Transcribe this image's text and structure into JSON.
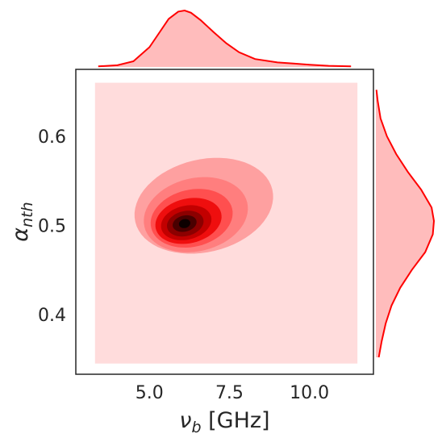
{
  "chart_data": {
    "type": "kde-jointplot",
    "xlabel_symbol": "ν",
    "xlabel_sub": "b",
    "xlabel_unit": " [GHz]",
    "ylabel_symbol": "α",
    "ylabel_sub": "nth",
    "xlim": [
      2.7,
      12.0
    ],
    "ylim": [
      0.333,
      0.675
    ],
    "x_ticks": [
      5.0,
      7.5,
      10.0
    ],
    "x_tick_labels": [
      "5.0",
      "7.5",
      "10.0"
    ],
    "y_ticks": [
      0.4,
      0.5,
      0.6
    ],
    "y_tick_labels": [
      "0.4",
      "0.5",
      "0.6"
    ],
    "fill_range_x": [
      3.3,
      11.5
    ],
    "fill_range_y": [
      0.345,
      0.66
    ],
    "joint_peak": {
      "x": 6.1,
      "y": 0.502
    },
    "contour_levels": [
      {
        "level": 1,
        "color": "#fea0a0",
        "a": 2.2,
        "b": 0.052,
        "angle": 0.2335,
        "cx": 6.7,
        "cy": 0.522
      },
      {
        "level": 2,
        "color": "#ff7e7e",
        "a": 1.65,
        "b": 0.041,
        "angle": 0.2335,
        "cx": 6.45,
        "cy": 0.512
      },
      {
        "level": 3,
        "color": "#ff4f4f",
        "a": 1.3,
        "b": 0.032,
        "angle": 0.2335,
        "cx": 6.32,
        "cy": 0.508
      },
      {
        "level": 4,
        "color": "#ef0e0e",
        "a": 1.05,
        "b": 0.025,
        "angle": 0.2335,
        "cx": 6.22,
        "cy": 0.505
      },
      {
        "level": 5,
        "color": "#c20000",
        "a": 0.8,
        "b": 0.019,
        "angle": 0.2335,
        "cx": 6.15,
        "cy": 0.503
      },
      {
        "level": 6,
        "color": "#8c0000",
        "a": 0.58,
        "b": 0.014,
        "angle": 0.2335,
        "cx": 6.12,
        "cy": 0.502
      },
      {
        "level": 7,
        "color": "#4a0000",
        "a": 0.38,
        "b": 0.009,
        "angle": 0.2335,
        "cx": 6.1,
        "cy": 0.502
      },
      {
        "level": 8,
        "color": "#0d0000",
        "a": 0.18,
        "b": 0.005,
        "angle": 0.2335,
        "cx": 6.1,
        "cy": 0.502
      }
    ],
    "x_marginal": {
      "x": [
        3.4,
        4.0,
        4.5,
        5.0,
        5.3,
        5.6,
        5.9,
        6.1,
        6.3,
        6.6,
        7.0,
        7.4,
        7.8,
        8.3,
        9.0,
        9.5,
        10.0,
        10.6,
        11.3
      ],
      "density": [
        0.01,
        0.03,
        0.1,
        0.35,
        0.6,
        0.85,
        0.98,
        1.0,
        0.96,
        0.83,
        0.62,
        0.42,
        0.26,
        0.14,
        0.08,
        0.06,
        0.04,
        0.02,
        0.01
      ]
    },
    "y_marginal": {
      "y": [
        0.352,
        0.37,
        0.39,
        0.41,
        0.43,
        0.45,
        0.47,
        0.49,
        0.505,
        0.52,
        0.54,
        0.56,
        0.58,
        0.6,
        0.62,
        0.64,
        0.652
      ],
      "density": [
        0.05,
        0.1,
        0.17,
        0.27,
        0.42,
        0.62,
        0.85,
        0.98,
        1.0,
        0.96,
        0.78,
        0.55,
        0.35,
        0.19,
        0.08,
        0.03,
        0.01
      ]
    },
    "colors": {
      "fill_background": "#ffdcdc",
      "marginal_fill": "#ffbcbc",
      "marginal_line": "#ff0000",
      "axes_edge": "#262626",
      "text": "#262626"
    }
  }
}
